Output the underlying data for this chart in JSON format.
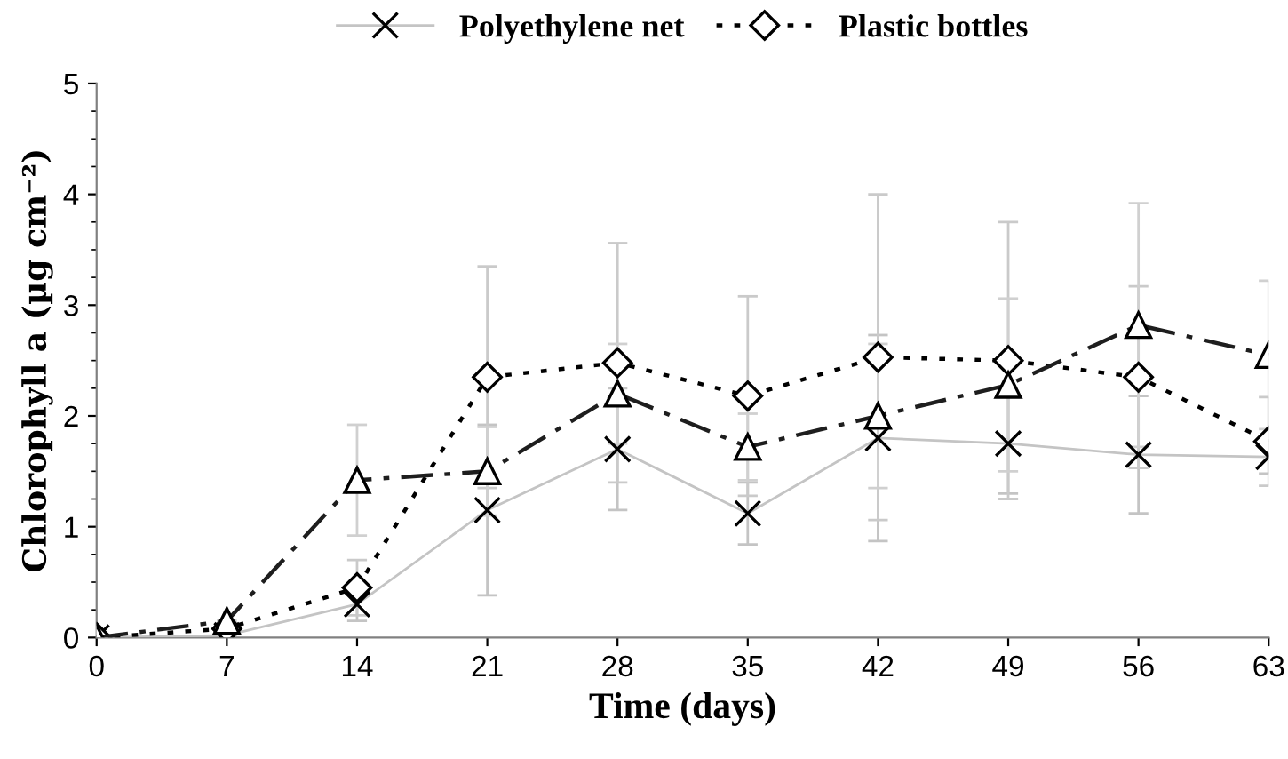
{
  "chart_data": {
    "type": "line",
    "xlabel": "Time (days)",
    "ylabel": "Chlorophyll a (µg cm⁻²)",
    "x": [
      0,
      7,
      14,
      21,
      28,
      35,
      42,
      49,
      56,
      63
    ],
    "xlim": [
      0,
      63
    ],
    "xticks": [
      0,
      7,
      14,
      21,
      28,
      35,
      42,
      49,
      56,
      63
    ],
    "ylim": [
      0,
      5
    ],
    "yticks": [
      0,
      1,
      2,
      3,
      4,
      5
    ],
    "grid": false,
    "legend": "top",
    "series": [
      {
        "name": "Polyethylene net",
        "color": "#c4c4c4",
        "marker": "cross",
        "line_style": "solid",
        "values": [
          0,
          0.02,
          0.3,
          1.15,
          1.7,
          1.12,
          1.8,
          1.75,
          1.65,
          1.63
        ],
        "errors": [
          null,
          null,
          0.15,
          0.77,
          0.55,
          0.28,
          0.93,
          0.45,
          0.53,
          0.15
        ]
      },
      {
        "name": "Plastic bottles",
        "color": "#000000",
        "marker": "diamond",
        "line_style": "dotted",
        "values": [
          0,
          0.08,
          0.45,
          2.35,
          2.48,
          2.18,
          2.53,
          2.5,
          2.35,
          1.77
        ],
        "errors": [
          null,
          null,
          0.25,
          1.0,
          1.08,
          0.9,
          1.47,
          1.25,
          0.82,
          0.4
        ]
      },
      {
        "color": "#1e1e1e",
        "marker": "triangle",
        "line_style": "dashdot",
        "values": [
          0,
          0.15,
          1.42,
          1.5,
          2.2,
          1.72,
          2.0,
          2.28,
          2.82,
          2.55
        ],
        "errors": [
          null,
          null,
          0.5,
          0.4,
          0.45,
          0.3,
          0.65,
          0.78,
          1.1,
          0.67
        ]
      }
    ]
  }
}
